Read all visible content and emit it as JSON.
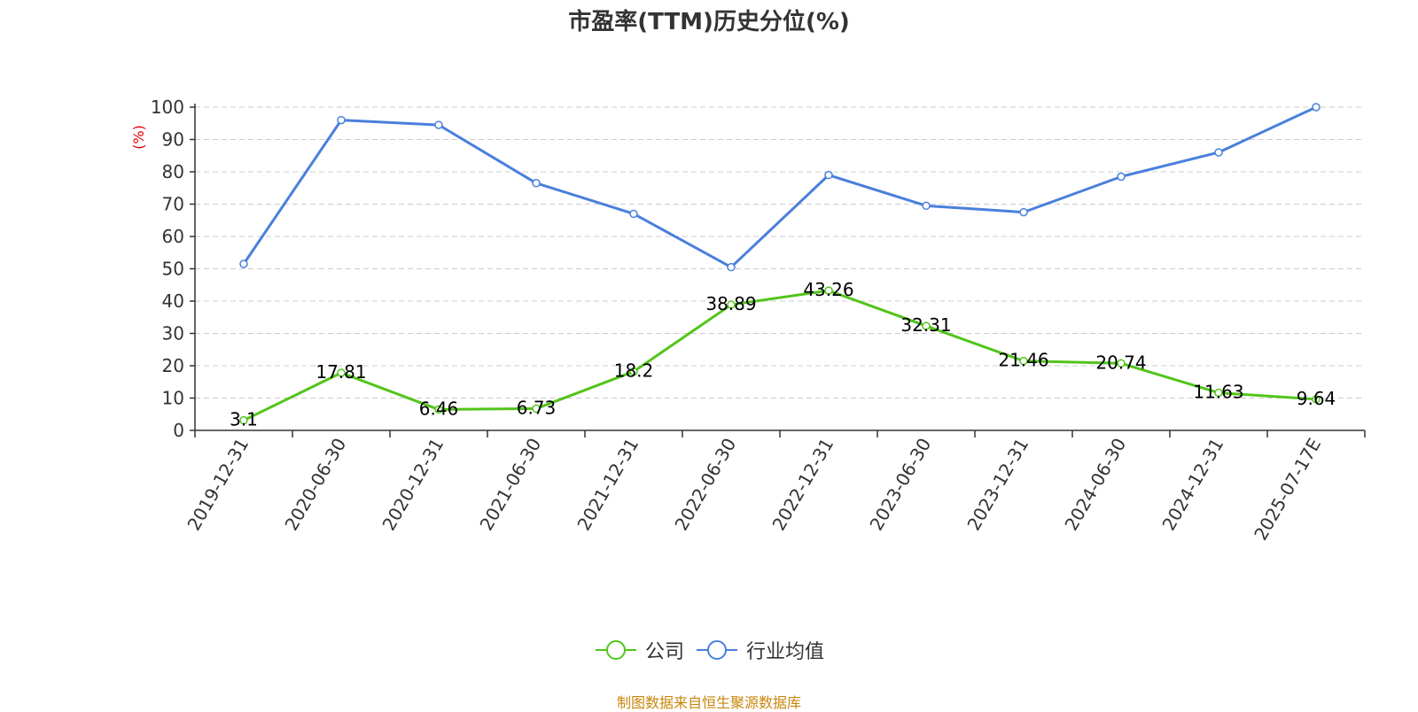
{
  "colors": {
    "company": "#52c41a",
    "industry": "#4a7fdc",
    "source": "#c8860a",
    "ylabel": "#e60000"
  },
  "source_note": "制图数据来自恒生聚源数据库",
  "chart_data": {
    "type": "line",
    "title": "市盈率(TTM)历史分位(%)",
    "xlabel": "",
    "ylabel": "(%)",
    "ylim": [
      0,
      100
    ],
    "yticks": [
      0,
      10,
      20,
      30,
      40,
      50,
      60,
      70,
      80,
      90,
      100
    ],
    "grid": true,
    "legend_position": "bottom-center",
    "categories": [
      "2019-12-31",
      "2020-06-30",
      "2020-12-31",
      "2021-06-30",
      "2021-12-31",
      "2022-06-30",
      "2022-12-31",
      "2023-06-30",
      "2023-12-31",
      "2024-06-30",
      "2024-12-31",
      "2025-07-17E"
    ],
    "series": [
      {
        "name": "公司",
        "color": "#52c41a",
        "show_labels": true,
        "values": [
          3.1,
          17.81,
          6.46,
          6.73,
          18.2,
          38.89,
          43.26,
          32.31,
          21.46,
          20.74,
          11.63,
          9.64
        ]
      },
      {
        "name": "行业均值",
        "color": "#4a7fdc",
        "show_labels": false,
        "values": [
          51.5,
          96.0,
          94.5,
          76.5,
          67.0,
          50.5,
          79.0,
          69.5,
          67.5,
          78.5,
          86.0,
          100.0
        ]
      }
    ]
  }
}
